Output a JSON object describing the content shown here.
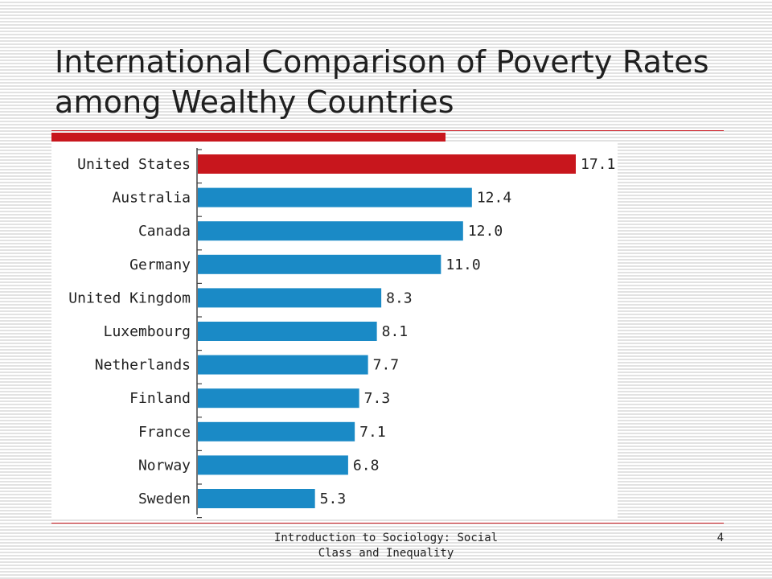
{
  "slide": {
    "title": "International Comparison of Poverty Rates among Wealthy Countries",
    "footer": "Introduction to Sociology: Social Class and Inequality",
    "page_number": "4"
  },
  "colors": {
    "highlight_bar": "#c8161d",
    "bar": "#1a8ac6",
    "accent": "#c8161d"
  },
  "chart_data": {
    "type": "bar",
    "orientation": "horizontal",
    "categories": [
      "United States",
      "Australia",
      "Canada",
      "Germany",
      "United Kingdom",
      "Luxembourg",
      "Netherlands",
      "Finland",
      "France",
      "Norway",
      "Sweden"
    ],
    "values": [
      17.1,
      12.4,
      12.0,
      11.0,
      8.3,
      8.1,
      7.7,
      7.3,
      7.1,
      6.8,
      5.3
    ],
    "value_labels": [
      "17.1",
      "12.4",
      "12.0",
      "11.0",
      "8.3",
      "8.1",
      "7.7",
      "7.3",
      "7.1",
      "6.8",
      "5.3"
    ],
    "highlighted_category": "United States",
    "xlim": [
      0,
      17.1
    ],
    "grid": false,
    "legend": "none"
  }
}
